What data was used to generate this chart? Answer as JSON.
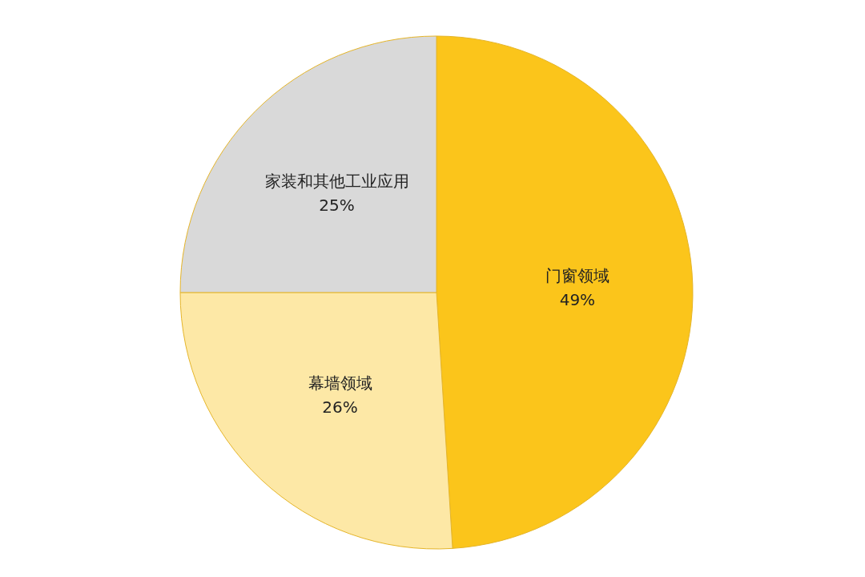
{
  "chart_data": {
    "type": "pie",
    "categories": [
      "门窗领域",
      "幕墙领域",
      "家装和其他工业应用"
    ],
    "values": [
      49,
      26,
      25
    ],
    "colors": [
      "#fbc51b",
      "#fde8a6",
      "#d9d9d9"
    ],
    "value_labels": [
      "49%",
      "26%",
      "25%"
    ]
  }
}
